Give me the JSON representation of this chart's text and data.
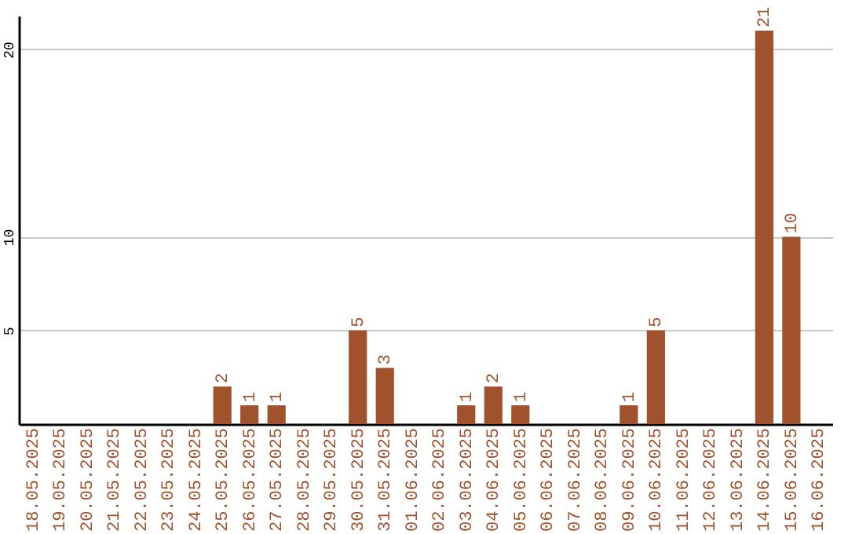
{
  "chart_data": {
    "type": "bar",
    "categories": [
      "18.05.2025",
      "19.05.2025",
      "20.05.2025",
      "21.05.2025",
      "22.05.2025",
      "23.05.2025",
      "24.05.2025",
      "25.05.2025",
      "26.05.2025",
      "27.05.2025",
      "28.05.2025",
      "29.05.2025",
      "30.05.2025",
      "31.05.2025",
      "01.06.2025",
      "02.06.2025",
      "03.06.2025",
      "04.06.2025",
      "05.06.2025",
      "06.06.2025",
      "07.06.2025",
      "08.06.2025",
      "09.06.2025",
      "10.06.2025",
      "11.06.2025",
      "12.06.2025",
      "13.06.2025",
      "14.06.2025",
      "15.06.2025",
      "16.06.2025"
    ],
    "values": [
      0,
      0,
      0,
      0,
      0,
      0,
      0,
      2,
      1,
      1,
      0,
      0,
      5,
      3,
      0,
      0,
      1,
      2,
      1,
      0,
      0,
      0,
      1,
      5,
      0,
      0,
      0,
      21,
      10,
      0
    ],
    "value_labels": [
      null,
      null,
      null,
      null,
      null,
      null,
      null,
      "2",
      "1",
      "1",
      null,
      null,
      "5",
      "3",
      null,
      null,
      "1",
      "2",
      "1",
      null,
      null,
      null,
      "1",
      "5",
      null,
      null,
      null,
      "21",
      "10",
      null
    ],
    "color": "#a0522d",
    "ylim": [
      0,
      21.8
    ],
    "yticks": [
      5,
      10,
      20
    ],
    "grid": "y"
  }
}
